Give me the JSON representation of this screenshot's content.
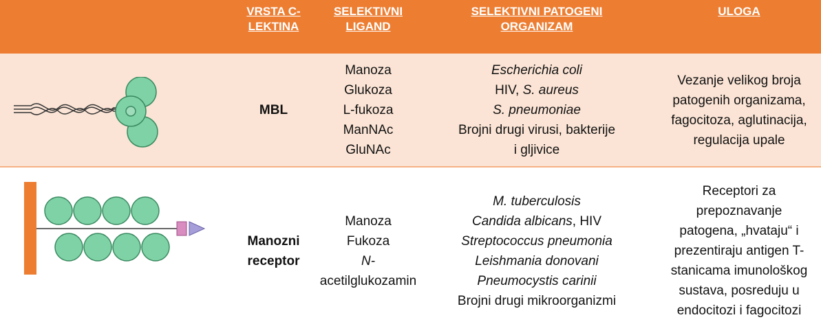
{
  "table": {
    "header": [
      [
        "VRSTA C-",
        "LEKTINA"
      ],
      [
        "SELEKTIVNI",
        "LIGAND"
      ],
      [
        "SELEKTIVNI PATOGENI",
        "ORGANIZAM"
      ],
      [
        "ULOGA"
      ]
    ],
    "rows": [
      [
        [
          "MBL"
        ],
        [
          "Manoza",
          "Glukoza",
          "L-fukoza",
          "ManNAc",
          "GluNAc"
        ],
        [
          {
            "text": "Escherichia coli",
            "italic": true
          },
          {
            "parts": [
              {
                "text": "HIV, "
              },
              {
                "text": "S. aureus",
                "italic": true
              }
            ]
          },
          {
            "text": "S. pneumoniae",
            "italic": true
          },
          "Brojni drugi virusi, bakterije",
          "i gljivice"
        ],
        [
          "Vezanje velikog broja",
          "patogenih organizama,",
          "fagocitoza, aglutinacija,",
          "regulacija upale"
        ]
      ],
      [
        [
          "Manozni",
          "receptor"
        ],
        [
          "Manoza",
          "Fukoza",
          {
            "text": "N-",
            "italic": true
          },
          "acetilglukozamin"
        ],
        [
          {
            "text": "M. tuberculosis",
            "italic": true
          },
          {
            "parts": [
              {
                "text": "Candida albicans",
                "italic": true
              },
              {
                "text": ", HIV"
              }
            ]
          },
          {
            "text": "Streptococcus pneumonia",
            "italic": true
          },
          {
            "text": "Leishmania donovani",
            "italic": true
          },
          {
            "text": "Pneumocystis carinii",
            "italic": true
          },
          "Brojni drugi mikroorganizmi"
        ],
        [
          "Receptori za",
          "prepoznavanje",
          "patogena, „hvataju“ i",
          "prezentiraju antigen T-",
          "stanicama imunološkog",
          "sustava, posreduju u",
          "endocitozi i fagocitozi"
        ]
      ]
    ]
  }
}
